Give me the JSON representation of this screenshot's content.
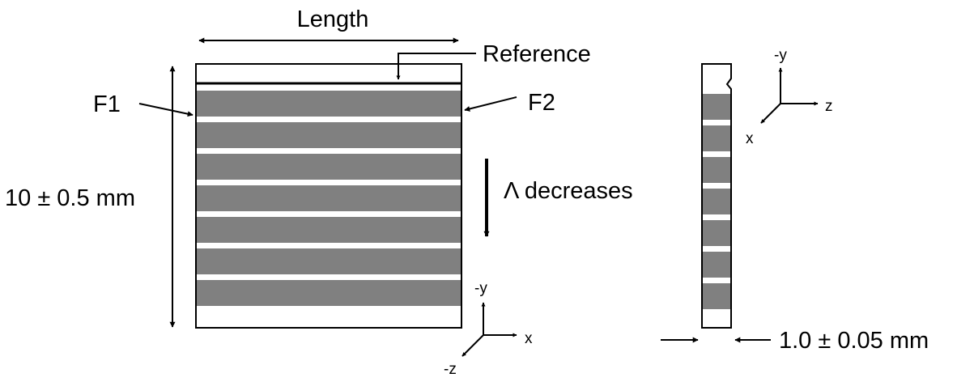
{
  "colors": {
    "stripe": "#808080",
    "outline": "#000000",
    "background": "#ffffff"
  },
  "front_view": {
    "length_label": "Length",
    "reference_label": "Reference",
    "f1_label": "F1",
    "f2_label": "F2",
    "height_label": "10 ± 0.5 mm",
    "period_label": "Λ decreases",
    "grating_count": 7
  },
  "front_axes": {
    "y_label": "-y",
    "x_label": "x",
    "z_label": "-z"
  },
  "side_view": {
    "thickness_label": "1.0 ± 0.05 mm",
    "grating_count": 7
  },
  "side_axes": {
    "y_label": "-y",
    "z_label": "z",
    "x_label": "x"
  }
}
